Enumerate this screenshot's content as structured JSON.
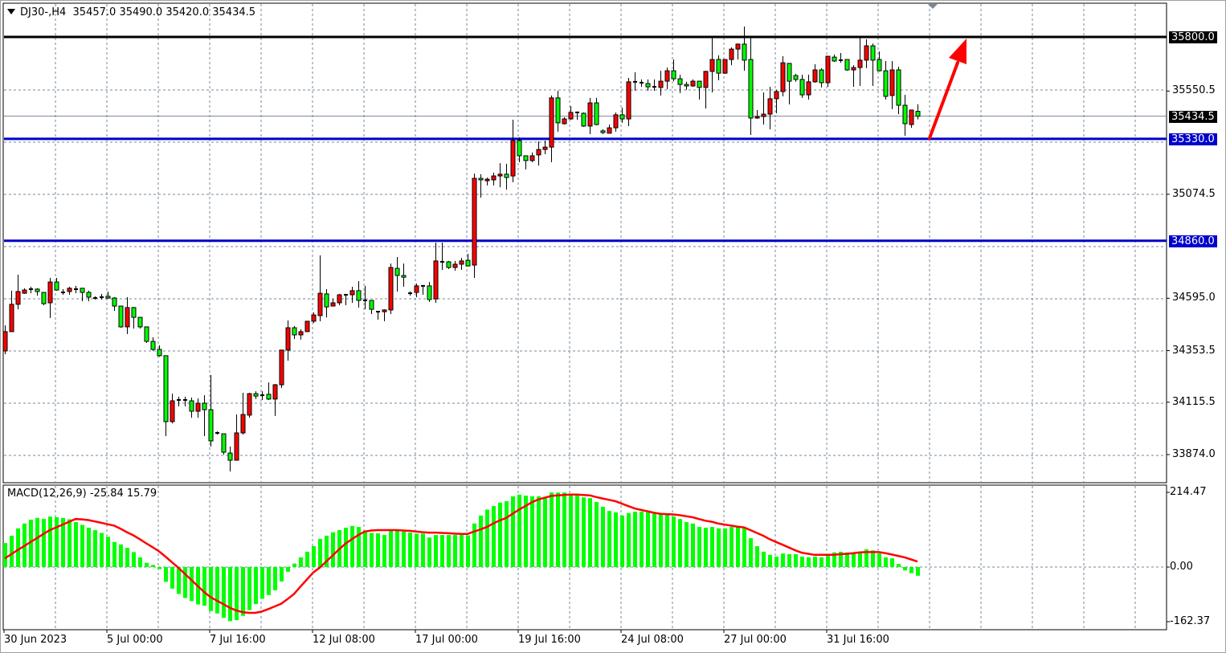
{
  "header": {
    "symbol": "DJ30-,H4",
    "open": "35457.0",
    "high": "35490.0",
    "low": "35420.0",
    "close": "35434.5"
  },
  "colors": {
    "bull_candle": "#ff0000",
    "bear_candle": "#00ff00",
    "resistance_line": "#000000",
    "support_line": "#0000cc",
    "arrow": "#ff0000",
    "macd_histogram": "#00ff00",
    "macd_signal": "#ff0000",
    "grid": "#778899"
  },
  "price_axis": {
    "ticks": [
      "35550.5",
      "35074.5",
      "34595.0",
      "34353.5",
      "34115.5",
      "33874.0"
    ],
    "lines": [
      {
        "label": "35800.0",
        "value": 35800.0,
        "kind": "resistance",
        "color": "#000000"
      },
      {
        "label": "35434.5",
        "value": 35434.5,
        "kind": "current-price",
        "color": "#000000"
      },
      {
        "label": "35330.0",
        "value": 35330.0,
        "kind": "support",
        "color": "#0000cc"
      },
      {
        "label": "34860.0",
        "value": 34860.0,
        "kind": "support",
        "color": "#0000cc"
      }
    ]
  },
  "time_axis": [
    "30 Jun 2023",
    "5 Jul 00:00",
    "7 Jul 16:00",
    "12 Jul 08:00",
    "17 Jul 00:00",
    "19 Jul 16:00",
    "24 Jul 08:00",
    "27 Jul 00:00",
    "31 Jul 16:00"
  ],
  "macd": {
    "title": "MACD(12,26,9) -25.84 15.79",
    "axis": [
      "214.47",
      "0.00",
      "-162.37"
    ]
  },
  "annotation": {
    "type": "arrow",
    "from_price": 35330.0,
    "to_price": 35800.0,
    "direction": "up"
  },
  "chart_data": {
    "type": "candlestick",
    "timeframe": "H4",
    "ylim": [
      33780,
      35860
    ],
    "grid": true,
    "candles_ohlc": [
      [
        34352,
        34470,
        34337,
        34441
      ],
      [
        34441,
        34630,
        34441,
        34567
      ],
      [
        34567,
        34704,
        34544,
        34626
      ],
      [
        34618,
        34641,
        34615,
        34633
      ],
      [
        34637,
        34648,
        34618,
        34637
      ],
      [
        34637,
        34641,
        34607,
        34626
      ],
      [
        34622,
        34622,
        34563,
        34570
      ],
      [
        34574,
        34689,
        34504,
        34670
      ],
      [
        34670,
        34689,
        34630,
        34633
      ],
      [
        34622,
        34637,
        34611,
        34622
      ],
      [
        34626,
        34648,
        34611,
        34641
      ],
      [
        34637,
        34652,
        34618,
        34637
      ],
      [
        34641,
        34641,
        34581,
        34622
      ],
      [
        34622,
        34630,
        34581,
        34600
      ],
      [
        34596,
        34604,
        34589,
        34596
      ],
      [
        34600,
        34615,
        34589,
        34600
      ],
      [
        34604,
        34626,
        34592,
        34596
      ],
      [
        34596,
        34600,
        34537,
        34559
      ],
      [
        34559,
        34559,
        34459,
        34463
      ],
      [
        34463,
        34600,
        34430,
        34552
      ],
      [
        34552,
        34555,
        34455,
        34507
      ],
      [
        34507,
        34507,
        34455,
        34463
      ],
      [
        34463,
        34463,
        34389,
        34396
      ],
      [
        34396,
        34415,
        34352,
        34359
      ],
      [
        34359,
        34378,
        34326,
        34330
      ],
      [
        34330,
        34330,
        33959,
        34026
      ],
      [
        34026,
        34155,
        34018,
        34122
      ],
      [
        34126,
        34141,
        34096,
        34126
      ],
      [
        34126,
        34141,
        34096,
        34126
      ],
      [
        34122,
        34137,
        34044,
        34074
      ],
      [
        34074,
        34133,
        34044,
        34111
      ],
      [
        34111,
        34148,
        33959,
        34081
      ],
      [
        34081,
        34241,
        33911,
        33937
      ],
      [
        33974,
        33981,
        33966,
        33974
      ],
      [
        33970,
        33970,
        33874,
        33885
      ],
      [
        33881,
        33911,
        33796,
        33848
      ],
      [
        33848,
        34059,
        33848,
        33974
      ],
      [
        33974,
        34159,
        33966,
        34059
      ],
      [
        34056,
        34159,
        34044,
        34155
      ],
      [
        34155,
        34166,
        34130,
        34144
      ],
      [
        34148,
        34166,
        34126,
        34148
      ],
      [
        34152,
        34207,
        34126,
        34130
      ],
      [
        34130,
        34200,
        34052,
        34196
      ],
      [
        34196,
        34356,
        34181,
        34356
      ],
      [
        34356,
        34493,
        34307,
        34459
      ],
      [
        34459,
        34467,
        34407,
        34426
      ],
      [
        34426,
        34452,
        34404,
        34441
      ],
      [
        34441,
        34489,
        34441,
        34489
      ],
      [
        34489,
        34530,
        34481,
        34518
      ],
      [
        34515,
        34793,
        34489,
        34618
      ],
      [
        34615,
        34637,
        34507,
        34555
      ],
      [
        34559,
        34592,
        34559,
        34574
      ],
      [
        34574,
        34615,
        34563,
        34611
      ],
      [
        34611,
        34615,
        34563,
        34611
      ],
      [
        34611,
        34648,
        34574,
        34630
      ],
      [
        34630,
        34674,
        34552,
        34585
      ],
      [
        34585,
        34652,
        34544,
        34585
      ],
      [
        34585,
        34585,
        34522,
        34544
      ],
      [
        34533,
        34537,
        34496,
        34533
      ],
      [
        34533,
        34544,
        34489,
        34541
      ],
      [
        34541,
        34755,
        34522,
        34737
      ],
      [
        34733,
        34785,
        34626,
        34700
      ],
      [
        34700,
        34755,
        34648,
        34692
      ],
      [
        34618,
        34626,
        34607,
        34618
      ],
      [
        34622,
        34663,
        34600,
        34652
      ],
      [
        34652,
        34656,
        34611,
        34652
      ],
      [
        34652,
        34670,
        34578,
        34589
      ],
      [
        34592,
        34852,
        34574,
        34767
      ],
      [
        34763,
        34852,
        34726,
        34763
      ],
      [
        34763,
        34767,
        34730,
        34737
      ],
      [
        34737,
        34767,
        34722,
        34752
      ],
      [
        34752,
        34781,
        34726,
        34767
      ],
      [
        34770,
        34800,
        34744,
        34744
      ],
      [
        34748,
        35170,
        34689,
        35148
      ],
      [
        35148,
        35167,
        35059,
        35141
      ],
      [
        35137,
        35152,
        35115,
        35144
      ],
      [
        35141,
        35174,
        35115,
        35159
      ],
      [
        35159,
        35218,
        35107,
        35167
      ],
      [
        35167,
        35215,
        35096,
        35152
      ],
      [
        35159,
        35418,
        35130,
        35322
      ],
      [
        35322,
        35337,
        35222,
        35252
      ],
      [
        35252,
        35252,
        35189,
        35230
      ],
      [
        35230,
        35267,
        35222,
        35252
      ],
      [
        35256,
        35318,
        35207,
        35281
      ],
      [
        35281,
        35322,
        35259,
        35292
      ],
      [
        35292,
        35530,
        35222,
        35519
      ],
      [
        35519,
        35552,
        35363,
        35404
      ],
      [
        35400,
        35430,
        35396,
        35422
      ],
      [
        35422,
        35481,
        35418,
        35452
      ],
      [
        35452,
        35456,
        35418,
        35452
      ],
      [
        35448,
        35452,
        35385,
        35389
      ],
      [
        35389,
        35519,
        35352,
        35496
      ],
      [
        35496,
        35519,
        35393,
        35396
      ],
      [
        35367,
        35374,
        35352,
        35359
      ],
      [
        35356,
        35396,
        35356,
        35381
      ],
      [
        35381,
        35452,
        35363,
        35441
      ],
      [
        35441,
        35474,
        35404,
        35422
      ],
      [
        35422,
        35611,
        35389,
        35593
      ],
      [
        35593,
        35637,
        35552,
        35593
      ],
      [
        35589,
        35604,
        35570,
        35589
      ],
      [
        35585,
        35604,
        35552,
        35570
      ],
      [
        35570,
        35604,
        35552,
        35570
      ],
      [
        35567,
        35644,
        35530,
        35596
      ],
      [
        35596,
        35659,
        35559,
        35644
      ],
      [
        35644,
        35696,
        35596,
        35607
      ],
      [
        35607,
        35626,
        35541,
        35581
      ],
      [
        35581,
        35593,
        35556,
        35574
      ],
      [
        35574,
        35604,
        35570,
        35596
      ],
      [
        35596,
        35596,
        35511,
        35567
      ],
      [
        35567,
        35644,
        35470,
        35641
      ],
      [
        35641,
        35800,
        35544,
        35696
      ],
      [
        35696,
        35715,
        35600,
        35633
      ],
      [
        35633,
        35696,
        35630,
        35696
      ],
      [
        35696,
        35752,
        35670,
        35744
      ],
      [
        35744,
        35770,
        35696,
        35767
      ],
      [
        35767,
        35848,
        35644,
        35693
      ],
      [
        35696,
        35796,
        35348,
        35426
      ],
      [
        35426,
        35463,
        35422,
        35433
      ],
      [
        35433,
        35544,
        35396,
        35444
      ],
      [
        35444,
        35570,
        35374,
        35515
      ],
      [
        35515,
        35556,
        35448,
        35548
      ],
      [
        35548,
        35711,
        35526,
        35681
      ],
      [
        35678,
        35678,
        35489,
        35596
      ],
      [
        35622,
        35630,
        35593,
        35604
      ],
      [
        35604,
        35626,
        35519,
        35533
      ],
      [
        35533,
        35626,
        35511,
        35593
      ],
      [
        35593,
        35674,
        35589,
        35648
      ],
      [
        35648,
        35656,
        35567,
        35589
      ],
      [
        35589,
        35711,
        35570,
        35711
      ],
      [
        35707,
        35719,
        35685,
        35689
      ],
      [
        35693,
        35726,
        35681,
        35693
      ],
      [
        35696,
        35696,
        35644,
        35648
      ],
      [
        35648,
        35670,
        35570,
        35659
      ],
      [
        35659,
        35800,
        35574,
        35693
      ],
      [
        35693,
        35789,
        35656,
        35759
      ],
      [
        35759,
        35770,
        35574,
        35693
      ],
      [
        35696,
        35733,
        35641,
        35644
      ],
      [
        35644,
        35689,
        35511,
        35526
      ],
      [
        35530,
        35689,
        35467,
        35648
      ],
      [
        35648,
        35663,
        35444,
        35485
      ],
      [
        35485,
        35533,
        35344,
        35400
      ],
      [
        35396,
        35463,
        35381,
        35463
      ],
      [
        35457,
        35490,
        35420,
        35434.5
      ]
    ],
    "macd_histogram": [
      69,
      90,
      111,
      125,
      136,
      141,
      138,
      145,
      143,
      141,
      137,
      129,
      121,
      113,
      106,
      98,
      87,
      72,
      65,
      55,
      43,
      28,
      12,
      6,
      -6,
      -44,
      -64,
      -80,
      -92,
      -101,
      -111,
      -115,
      -131,
      -138,
      -151,
      -161,
      -158,
      -145,
      -128,
      -110,
      -94,
      -83,
      -69,
      -43,
      -14,
      10,
      28,
      44,
      60,
      81,
      90,
      100,
      106,
      113,
      118,
      115,
      105,
      98,
      97,
      92,
      104,
      104,
      102,
      99,
      96,
      96,
      85,
      92,
      92,
      92,
      92,
      92,
      91,
      125,
      148,
      165,
      175,
      185,
      189,
      203,
      208,
      205,
      203,
      203,
      201,
      214,
      214,
      214,
      211,
      205,
      200,
      198,
      187,
      173,
      161,
      157,
      148,
      155,
      159,
      159,
      157,
      154,
      152,
      150,
      145,
      138,
      129,
      125,
      115,
      113,
      115,
      111,
      111,
      115,
      115,
      111,
      83,
      60,
      44,
      35,
      30,
      39,
      37,
      37,
      30,
      28,
      30,
      28,
      32,
      42,
      44,
      42,
      42,
      44,
      51,
      48,
      39,
      28,
      25,
      9,
      -10,
      -18,
      -25.84
    ],
    "macd_signal": [
      25,
      37,
      49,
      60,
      72,
      83,
      95,
      106,
      114,
      122,
      130,
      138,
      137,
      135,
      131,
      127,
      123,
      119,
      110,
      100,
      91,
      80,
      68,
      57,
      45,
      30,
      14,
      -2,
      -20,
      -38,
      -56,
      -74,
      -89,
      -100,
      -110,
      -121,
      -129,
      -134,
      -136,
      -136,
      -132,
      -125,
      -117,
      -109,
      -95,
      -80,
      -58,
      -37,
      -16,
      -2,
      16,
      33,
      51,
      67,
      80,
      92,
      102,
      105,
      106,
      106,
      106,
      106,
      105,
      104,
      102,
      100,
      99,
      99,
      98,
      97,
      96,
      95,
      95,
      102,
      108,
      115,
      125,
      134,
      141,
      153,
      165,
      175,
      186,
      194,
      199,
      204,
      206,
      207,
      208,
      208,
      207,
      206,
      201,
      197,
      193,
      189,
      182,
      175,
      168,
      164,
      160,
      156,
      153,
      152,
      151,
      149,
      146,
      143,
      138,
      133,
      130,
      125,
      122,
      119,
      116,
      114,
      106,
      98,
      90,
      80,
      72,
      64,
      56,
      48,
      41,
      38,
      35,
      35,
      35,
      35,
      37,
      38,
      40,
      42,
      43,
      43,
      43,
      40,
      36,
      32,
      28,
      22,
      15.79
    ]
  }
}
